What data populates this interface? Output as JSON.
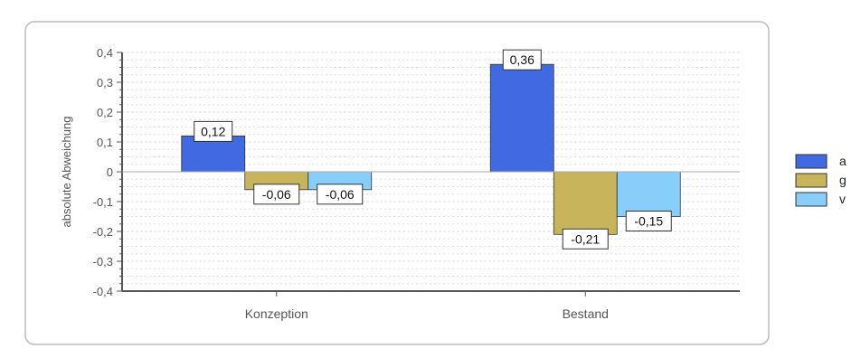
{
  "colors": {
    "a": "#4169e1",
    "g": "#c8b45a",
    "v": "#87cefa",
    "panel_border": "#bbbbbb",
    "grid": "#dddddd",
    "axis": "#555555"
  },
  "chart_data": {
    "type": "bar",
    "title": "",
    "xlabel": "",
    "ylabel": "absolute Abweichung",
    "ylim": [
      -0.4,
      0.4
    ],
    "yticks": [
      "0,4",
      "0,3",
      "0,2",
      "0,1",
      "0",
      "-0,1",
      "-0,2",
      "-0,3",
      "-0,4"
    ],
    "ytick_values": [
      0.4,
      0.3,
      0.2,
      0.1,
      0,
      -0.1,
      -0.2,
      -0.3,
      -0.4
    ],
    "categories": [
      "Konzeption",
      "Bestand"
    ],
    "series": [
      {
        "name": "a",
        "values": [
          0.12,
          0.36
        ],
        "labels": [
          "0,12",
          "0,36"
        ]
      },
      {
        "name": "g",
        "values": [
          -0.06,
          -0.21
        ],
        "labels": [
          "-0,06",
          "-0,21"
        ]
      },
      {
        "name": "v",
        "values": [
          -0.06,
          -0.15
        ],
        "labels": [
          "-0,06",
          "-0,15"
        ]
      }
    ],
    "grid": true,
    "legend_position": "right"
  }
}
